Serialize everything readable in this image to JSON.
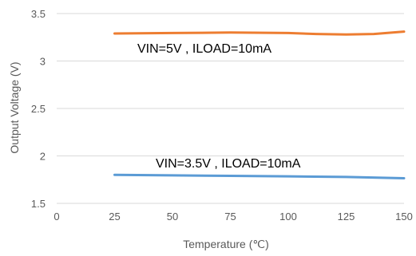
{
  "chart_data": {
    "type": "line",
    "title": "",
    "xlabel": "Temperature (℃)",
    "ylabel": "Output Voltage (V)",
    "xlim": [
      0,
      150
    ],
    "ylim": [
      1.5,
      3.5
    ],
    "x_ticks": [
      0,
      25,
      50,
      75,
      100,
      125,
      150
    ],
    "y_ticks": [
      1.5,
      2,
      2.5,
      3,
      3.5
    ],
    "x_tick_labels": [
      "0",
      "25",
      "50",
      "75",
      "100",
      "125",
      "150"
    ],
    "y_tick_labels": [
      "1.5",
      "2",
      "2.5",
      "3",
      "3.5"
    ],
    "grid": "horizontal",
    "legend": "none",
    "series": [
      {
        "color": "#ED7D31",
        "x": [
          25,
          50,
          75,
          100,
          112,
          125,
          137,
          150
        ],
        "y": [
          3.29,
          3.295,
          3.3,
          3.295,
          3.285,
          3.28,
          3.285,
          3.31
        ]
      },
      {
        "color": "#5B9BD5",
        "x": [
          25,
          50,
          75,
          100,
          125,
          150
        ],
        "y": [
          1.8,
          1.795,
          1.79,
          1.785,
          1.778,
          1.765
        ]
      }
    ],
    "annotations": [
      {
        "text": "VIN=5V , ILOAD=10mA",
        "series_index": 0
      },
      {
        "text": "VIN=3.5V , ILOAD=10mA",
        "series_index": 1
      }
    ]
  }
}
